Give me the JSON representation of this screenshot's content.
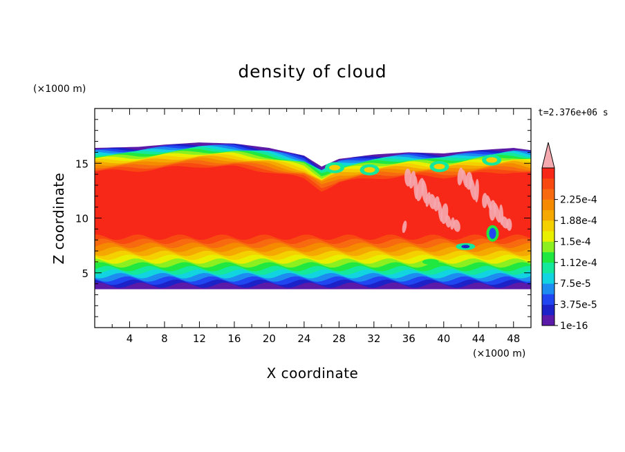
{
  "chart_data": {
    "type": "heatmap",
    "title": "density of cloud",
    "xlabel": "X coordinate",
    "ylabel": "Z coordinate",
    "x_unit": "(×1000 m)",
    "y_unit": "(×1000 m)",
    "time_label": "t=2.376e+06 s",
    "xlim": [
      0,
      50
    ],
    "ylim": [
      0,
      20
    ],
    "x_ticks": [
      4,
      8,
      12,
      16,
      20,
      24,
      28,
      32,
      36,
      40,
      44,
      48
    ],
    "y_ticks": [
      5,
      10,
      15
    ],
    "colorbar": {
      "labels": [
        "1e-16",
        "3.75e-5",
        "7.5e-5",
        "1.12e-4",
        "1.5e-4",
        "1.88e-4",
        "2.25e-4"
      ],
      "levels": [
        0,
        3.75e-05,
        7.5e-05,
        0.0001125,
        0.00015,
        0.0001875,
        0.000225,
        0.00025
      ],
      "colors": [
        "#5b1aa8",
        "#1c22c8",
        "#1f46f0",
        "#1d8cf0",
        "#12d4e0",
        "#14e89c",
        "#20e840",
        "#8cf020",
        "#e8f000",
        "#f5d000",
        "#f5a800",
        "#f58a00",
        "#f86a10",
        "#f84a10",
        "#f82818"
      ],
      "extend_color": "#f5aab0"
    },
    "cloud": {
      "base_km": 3.5,
      "top_km": [
        [
          0,
          16.4
        ],
        [
          5,
          16.5
        ],
        [
          8,
          16.7
        ],
        [
          12,
          16.9
        ],
        [
          16,
          16.8
        ],
        [
          20,
          16.4
        ],
        [
          24,
          15.7
        ],
        [
          26,
          14.7
        ],
        [
          28,
          15.4
        ],
        [
          32,
          15.8
        ],
        [
          36,
          16.0
        ],
        [
          40,
          15.9
        ],
        [
          44,
          16.2
        ],
        [
          48,
          16.4
        ],
        [
          50,
          16.2
        ]
      ],
      "core_value": 0.00024
    }
  }
}
